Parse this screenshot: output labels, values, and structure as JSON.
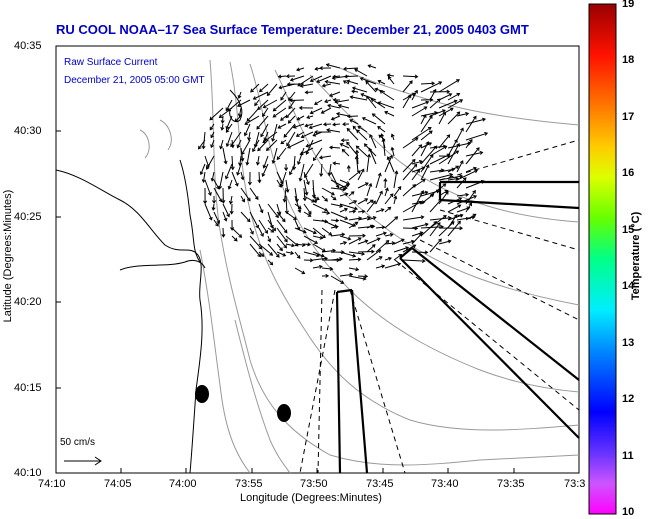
{
  "title": "RU COOL   NOAA–17  Sea Surface Temperature:  December 21, 2005 0403 GMT",
  "legend": {
    "line1": "Raw Surface Current",
    "line2": "December 21, 2005 05:00 GMT"
  },
  "axes": {
    "ylabel": "Latitude (Degrees:Minutes)",
    "xlabel": "Longitude (Degrees:Minutes)",
    "yticks": [
      "40:35",
      "40:30",
      "40:25",
      "40:20",
      "40:15",
      "40:10"
    ],
    "xticks": [
      "74:10",
      "74:05",
      "74:00",
      "73:55",
      "73:50",
      "73:45",
      "73:40",
      "73:35",
      "73:3"
    ]
  },
  "colorbar": {
    "label": "Temperature (°C)",
    "ticks": [
      "19",
      "18",
      "17",
      "16",
      "15",
      "14",
      "13",
      "12",
      "11",
      "10"
    ]
  },
  "scale": {
    "label": "50 cm/s"
  },
  "colors": {
    "title": "#0000cc",
    "vectors": "#000000",
    "coastline": "#000000",
    "bathymetry": "#888888"
  }
}
